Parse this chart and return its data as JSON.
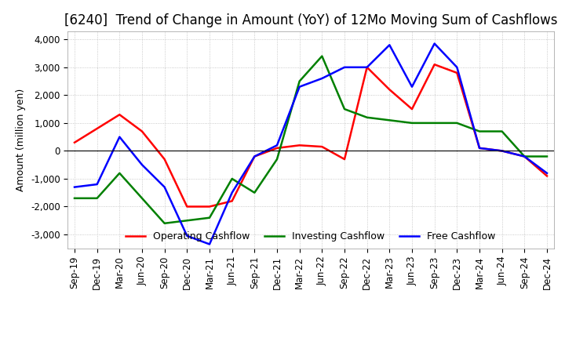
{
  "title": "[6240]  Trend of Change in Amount (YoY) of 12Mo Moving Sum of Cashflows",
  "ylabel": "Amount (million yen)",
  "x_labels": [
    "Sep-19",
    "Dec-19",
    "Mar-20",
    "Jun-20",
    "Sep-20",
    "Dec-20",
    "Mar-21",
    "Jun-21",
    "Sep-21",
    "Dec-21",
    "Mar-22",
    "Jun-22",
    "Sep-22",
    "Dec-22",
    "Mar-23",
    "Jun-23",
    "Sep-23",
    "Dec-23",
    "Mar-24",
    "Jun-24",
    "Sep-24",
    "Dec-24"
  ],
  "operating": [
    300,
    800,
    1300,
    700,
    -300,
    -2000,
    -2000,
    -1800,
    -200,
    100,
    200,
    150,
    -300,
    3000,
    2200,
    1500,
    3100,
    2800,
    100,
    0,
    -200,
    -900
  ],
  "investing": [
    -1700,
    -1700,
    -800,
    -1700,
    -2600,
    -2500,
    -2400,
    -1000,
    -1500,
    -300,
    2500,
    3400,
    1500,
    1200,
    1100,
    1000,
    1000,
    1000,
    700,
    700,
    -200,
    -200
  ],
  "free": [
    -1300,
    -1200,
    500,
    -500,
    -1300,
    -3050,
    -3350,
    -1500,
    -200,
    200,
    2300,
    2600,
    3000,
    3000,
    3800,
    2300,
    3850,
    3000,
    100,
    0,
    -200,
    -800
  ],
  "ylim": [
    -3500,
    4300
  ],
  "yticks": [
    -3000,
    -2000,
    -1000,
    0,
    1000,
    2000,
    3000,
    4000
  ],
  "colors": {
    "operating": "#ff0000",
    "investing": "#008000",
    "free": "#0000ff"
  },
  "legend_labels": [
    "Operating Cashflow",
    "Investing Cashflow",
    "Free Cashflow"
  ],
  "background_color": "#ffffff",
  "grid_color": "#bbbbbb",
  "title_fontsize": 12,
  "label_fontsize": 9,
  "tick_fontsize": 8.5
}
